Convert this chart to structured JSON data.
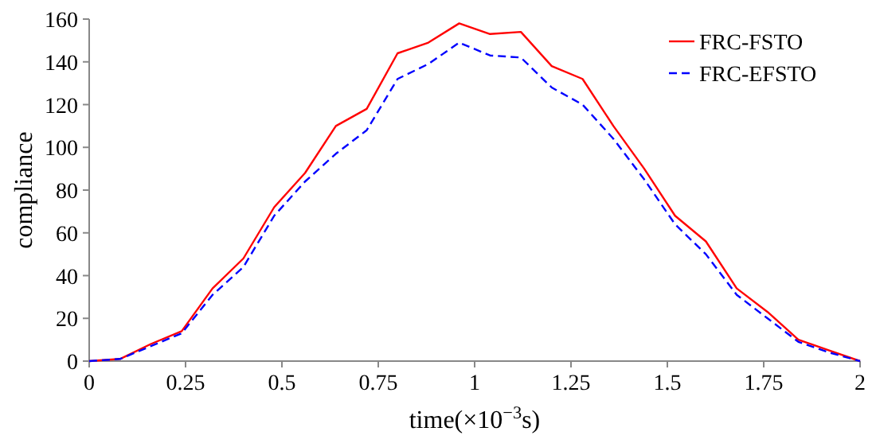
{
  "chart_data": {
    "type": "line",
    "xlabel": "time(×10$^{−3}$s)",
    "ylabel": "compliance",
    "xlim": [
      0,
      2
    ],
    "xticks": [
      0,
      0.25,
      0.5,
      0.75,
      1,
      1.25,
      1.5,
      1.75,
      2
    ],
    "ylim": [
      0,
      160
    ],
    "yticks": [
      0,
      20,
      40,
      60,
      80,
      100,
      120,
      140,
      160
    ],
    "legend": "top right",
    "grid": false,
    "marker": "none",
    "x": [
      0,
      0.08,
      0.16,
      0.24,
      0.32,
      0.4,
      0.48,
      0.56,
      0.64,
      0.72,
      0.8,
      0.88,
      0.96,
      1.04,
      1.12,
      1.2,
      1.28,
      1.36,
      1.44,
      1.52,
      1.6,
      1.68,
      1.76,
      1.84,
      1.92,
      2
    ],
    "series": [
      {
        "name": "FRC-FSTO",
        "color": "#ff0000",
        "line_style": "solid",
        "values": [
          0,
          1,
          8,
          14,
          34,
          48,
          72,
          88,
          110,
          118,
          144,
          149,
          158,
          153,
          154,
          138,
          132,
          110,
          90,
          68,
          56,
          34,
          23,
          10,
          5,
          0
        ]
      },
      {
        "name": "FRC-EFSTO",
        "color": "#0000ff",
        "line_style": "dashed",
        "values": [
          0,
          1,
          7,
          13,
          31,
          44,
          68,
          84,
          97,
          108,
          132,
          139,
          149,
          143,
          142,
          128,
          120,
          104,
          85,
          64,
          50,
          31,
          20,
          9,
          4,
          0
        ]
      }
    ]
  }
}
